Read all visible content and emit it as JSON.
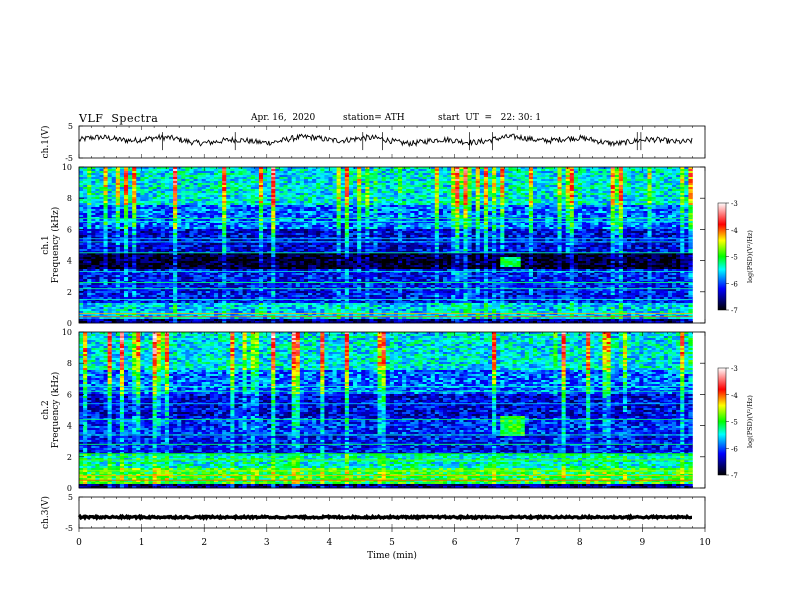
{
  "header": {
    "title": "VLF  Spectra",
    "date": "Apr. 16,  2020",
    "station": "station= ATH",
    "start": "start  UT  =   22: 30: 1"
  },
  "colorbar": {
    "label": "log(PSD)(V²/Hz)",
    "ticks": [
      "-3",
      "-4",
      "-5",
      "-6",
      "-7"
    ],
    "colors": [
      "#ffffff",
      "#ff0000",
      "#ffff00",
      "#00ff00",
      "#00ffff",
      "#0000ff",
      "#000000"
    ]
  },
  "chart_data": [
    {
      "type": "line",
      "ylabel": "ch.1(V)",
      "ylim": [
        -5,
        5
      ],
      "yticks": [
        "5",
        "-5"
      ],
      "xlim": [
        0,
        10
      ],
      "baseline_v": 0.6,
      "series_color": "#000000"
    },
    {
      "type": "heatmap",
      "ylabel_channel": "ch.1",
      "ylabel": "Frequency  (kHz)",
      "ylim": [
        0,
        10
      ],
      "yticks": [
        "0",
        "2",
        "4",
        "6",
        "8",
        "10"
      ],
      "xlim": [
        0,
        9.8
      ],
      "color_scale": "log(PSD)(V²/Hz)",
      "clim": [
        -7,
        -3
      ],
      "features": [
        {
          "feature": "quiet band",
          "freq_khz": [
            3.6,
            4.4
          ],
          "log_psd": -6.9
        },
        {
          "feature": "burst",
          "time_min": [
            6.75,
            7.05
          ],
          "freq_khz": [
            3.6,
            4.2
          ],
          "log_psd": -5.2
        },
        {
          "feature": "strong low band",
          "freq_khz": [
            0.3,
            0.8
          ],
          "log_psd": -4.5
        }
      ]
    },
    {
      "type": "heatmap",
      "ylabel_channel": "ch.2",
      "ylabel": "Frequency  (kHz)",
      "ylim": [
        0,
        10
      ],
      "yticks": [
        "0",
        "2",
        "4",
        "6",
        "8",
        "10"
      ],
      "xlim": [
        0,
        9.8
      ],
      "color_scale": "log(PSD)(V²/Hz)",
      "clim": [
        -7,
        -3
      ],
      "features": [
        {
          "feature": "burst",
          "time_min": [
            6.75,
            7.1
          ],
          "freq_khz": [
            3.3,
            4.6
          ],
          "log_psd": -5.0
        },
        {
          "feature": "strong low band",
          "freq_khz": [
            0.5,
            1.5
          ],
          "log_psd": -4.5
        }
      ]
    },
    {
      "type": "line",
      "ylabel": "ch.3(V)",
      "ylim": [
        -5,
        5
      ],
      "yticks": [
        "5",
        "-5"
      ],
      "xlim": [
        0,
        10
      ],
      "baseline_v": -1.5,
      "series_color": "#000000"
    }
  ],
  "xaxis": {
    "label": "Time  (min)",
    "ticks": [
      "0",
      "1",
      "2",
      "3",
      "4",
      "5",
      "6",
      "7",
      "8",
      "9",
      "10"
    ],
    "range": [
      0,
      10
    ]
  }
}
